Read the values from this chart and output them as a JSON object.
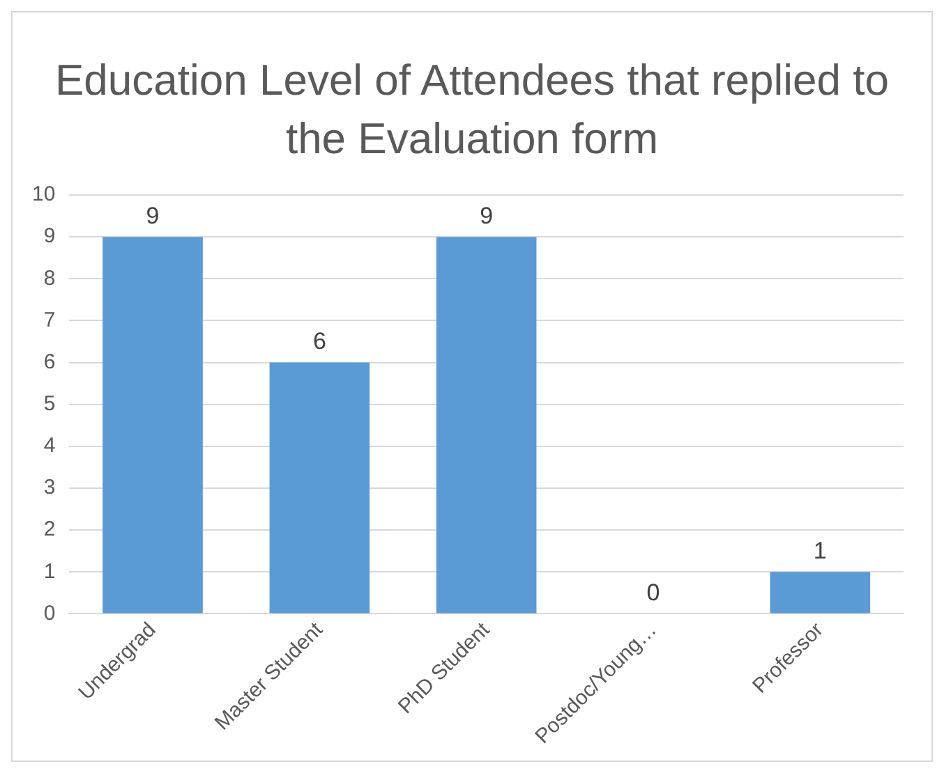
{
  "chart_data": {
    "type": "bar",
    "title": "Education Level of Attendees that replied to the Evaluation form",
    "categories": [
      "Undergrad",
      "Master Student",
      "PhD Student",
      "Postdoc/Young…",
      "Professor"
    ],
    "values": [
      9,
      6,
      9,
      0,
      1
    ],
    "color": "#5b9bd5",
    "ylim": [
      0,
      10
    ],
    "yticks": [
      0,
      1,
      2,
      3,
      4,
      5,
      6,
      7,
      8,
      9,
      10
    ],
    "grid": "y",
    "data_labels": true
  }
}
